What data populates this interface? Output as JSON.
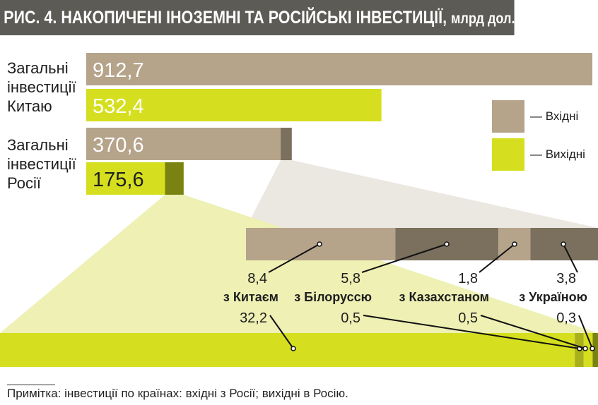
{
  "title": "РИС. 4. НАКОПИЧЕНІ ІНОЗЕМНІ ТА РОСІЙСЬКІ ІНВЕСТИЦІЇ,",
  "title_unit": "млрд дол.",
  "groups": [
    {
      "label": [
        "Загальні",
        "інвестиції",
        "Китаю"
      ],
      "inflow": 912.7,
      "outflow": 532.4,
      "inflow_label": "912,7",
      "outflow_label": "532,4"
    },
    {
      "label": [
        "Загальні",
        "інвестиції",
        "Росії"
      ],
      "inflow": 370.6,
      "outflow": 175.6,
      "inflow_label": "370,6",
      "outflow_label": "175,6"
    }
  ],
  "legend": [
    {
      "label": "— Вхідні",
      "color": "#b5a38a"
    },
    {
      "label": "— Вихідні",
      "color": "#d5df1f"
    }
  ],
  "chart_data": {
    "type": "bar",
    "categories": [
      "Китай",
      "Росія"
    ],
    "series": [
      {
        "name": "Вхідні",
        "values": [
          912.7,
          370.6
        ]
      },
      {
        "name": "Вихідні",
        "values": [
          532.4,
          175.6
        ]
      }
    ],
    "breakdown": {
      "countries": [
        "з Китаєм",
        "з Білоруссю",
        "з Казахстаном",
        "з Україною"
      ],
      "inflow_values": [
        8.4,
        5.8,
        1.8,
        3.8
      ],
      "inflow_labels": [
        "8,4",
        "5,8",
        "1,8",
        "3,8"
      ],
      "outflow_values": [
        32.2,
        0.5,
        0.5,
        0.3
      ],
      "outflow_labels": [
        "32,2",
        "0,5",
        "0,5",
        "0,3"
      ]
    }
  },
  "colors": {
    "inflow": "#b5a38a",
    "inflow_dark": "#7b705e",
    "outflow": "#d5df1f",
    "outflow_dark": "#7a8311",
    "outflow_mid": "#a8b01a",
    "funnel_inflow": "#ebe7e1",
    "funnel_outflow": "#eef0b4"
  },
  "note": "Примітка: інвестиції по країнах: вхідні з Росії; вихідні в Росію."
}
